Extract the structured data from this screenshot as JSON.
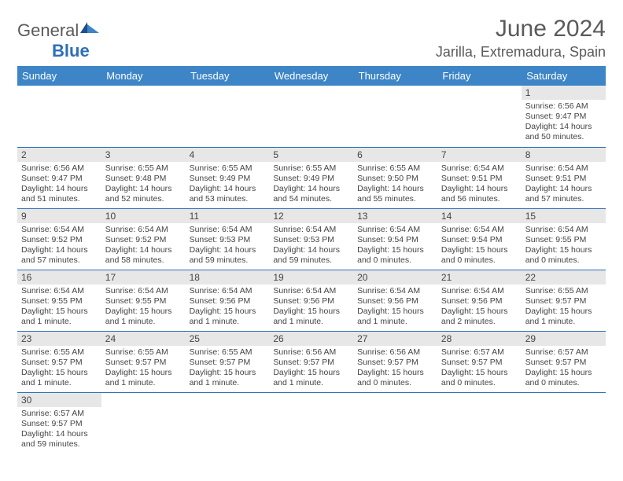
{
  "brand": {
    "name_gray": "General",
    "name_blue": "Blue"
  },
  "title": "June 2024",
  "location": "Jarilla, Extremadura, Spain",
  "colors": {
    "header_bg": "#3d85c6",
    "header_text": "#ffffff",
    "rule": "#2d6fb8",
    "daynum_bg": "#e7e7e7",
    "body_text": "#444444",
    "title_text": "#5a5a5a"
  },
  "weekdays": [
    "Sunday",
    "Monday",
    "Tuesday",
    "Wednesday",
    "Thursday",
    "Friday",
    "Saturday"
  ],
  "first_weekday_index": 6,
  "days": [
    {
      "n": 1,
      "sunrise": "6:56 AM",
      "sunset": "9:47 PM",
      "daylight": "14 hours and 50 minutes."
    },
    {
      "n": 2,
      "sunrise": "6:56 AM",
      "sunset": "9:47 PM",
      "daylight": "14 hours and 51 minutes."
    },
    {
      "n": 3,
      "sunrise": "6:55 AM",
      "sunset": "9:48 PM",
      "daylight": "14 hours and 52 minutes."
    },
    {
      "n": 4,
      "sunrise": "6:55 AM",
      "sunset": "9:49 PM",
      "daylight": "14 hours and 53 minutes."
    },
    {
      "n": 5,
      "sunrise": "6:55 AM",
      "sunset": "9:49 PM",
      "daylight": "14 hours and 54 minutes."
    },
    {
      "n": 6,
      "sunrise": "6:55 AM",
      "sunset": "9:50 PM",
      "daylight": "14 hours and 55 minutes."
    },
    {
      "n": 7,
      "sunrise": "6:54 AM",
      "sunset": "9:51 PM",
      "daylight": "14 hours and 56 minutes."
    },
    {
      "n": 8,
      "sunrise": "6:54 AM",
      "sunset": "9:51 PM",
      "daylight": "14 hours and 57 minutes."
    },
    {
      "n": 9,
      "sunrise": "6:54 AM",
      "sunset": "9:52 PM",
      "daylight": "14 hours and 57 minutes."
    },
    {
      "n": 10,
      "sunrise": "6:54 AM",
      "sunset": "9:52 PM",
      "daylight": "14 hours and 58 minutes."
    },
    {
      "n": 11,
      "sunrise": "6:54 AM",
      "sunset": "9:53 PM",
      "daylight": "14 hours and 59 minutes."
    },
    {
      "n": 12,
      "sunrise": "6:54 AM",
      "sunset": "9:53 PM",
      "daylight": "14 hours and 59 minutes."
    },
    {
      "n": 13,
      "sunrise": "6:54 AM",
      "sunset": "9:54 PM",
      "daylight": "15 hours and 0 minutes."
    },
    {
      "n": 14,
      "sunrise": "6:54 AM",
      "sunset": "9:54 PM",
      "daylight": "15 hours and 0 minutes."
    },
    {
      "n": 15,
      "sunrise": "6:54 AM",
      "sunset": "9:55 PM",
      "daylight": "15 hours and 0 minutes."
    },
    {
      "n": 16,
      "sunrise": "6:54 AM",
      "sunset": "9:55 PM",
      "daylight": "15 hours and 1 minute."
    },
    {
      "n": 17,
      "sunrise": "6:54 AM",
      "sunset": "9:55 PM",
      "daylight": "15 hours and 1 minute."
    },
    {
      "n": 18,
      "sunrise": "6:54 AM",
      "sunset": "9:56 PM",
      "daylight": "15 hours and 1 minute."
    },
    {
      "n": 19,
      "sunrise": "6:54 AM",
      "sunset": "9:56 PM",
      "daylight": "15 hours and 1 minute."
    },
    {
      "n": 20,
      "sunrise": "6:54 AM",
      "sunset": "9:56 PM",
      "daylight": "15 hours and 1 minute."
    },
    {
      "n": 21,
      "sunrise": "6:54 AM",
      "sunset": "9:56 PM",
      "daylight": "15 hours and 2 minutes."
    },
    {
      "n": 22,
      "sunrise": "6:55 AM",
      "sunset": "9:57 PM",
      "daylight": "15 hours and 1 minute."
    },
    {
      "n": 23,
      "sunrise": "6:55 AM",
      "sunset": "9:57 PM",
      "daylight": "15 hours and 1 minute."
    },
    {
      "n": 24,
      "sunrise": "6:55 AM",
      "sunset": "9:57 PM",
      "daylight": "15 hours and 1 minute."
    },
    {
      "n": 25,
      "sunrise": "6:55 AM",
      "sunset": "9:57 PM",
      "daylight": "15 hours and 1 minute."
    },
    {
      "n": 26,
      "sunrise": "6:56 AM",
      "sunset": "9:57 PM",
      "daylight": "15 hours and 1 minute."
    },
    {
      "n": 27,
      "sunrise": "6:56 AM",
      "sunset": "9:57 PM",
      "daylight": "15 hours and 0 minutes."
    },
    {
      "n": 28,
      "sunrise": "6:57 AM",
      "sunset": "9:57 PM",
      "daylight": "15 hours and 0 minutes."
    },
    {
      "n": 29,
      "sunrise": "6:57 AM",
      "sunset": "9:57 PM",
      "daylight": "15 hours and 0 minutes."
    },
    {
      "n": 30,
      "sunrise": "6:57 AM",
      "sunset": "9:57 PM",
      "daylight": "14 hours and 59 minutes."
    }
  ],
  "labels": {
    "sunrise": "Sunrise:",
    "sunset": "Sunset:",
    "daylight": "Daylight:"
  }
}
